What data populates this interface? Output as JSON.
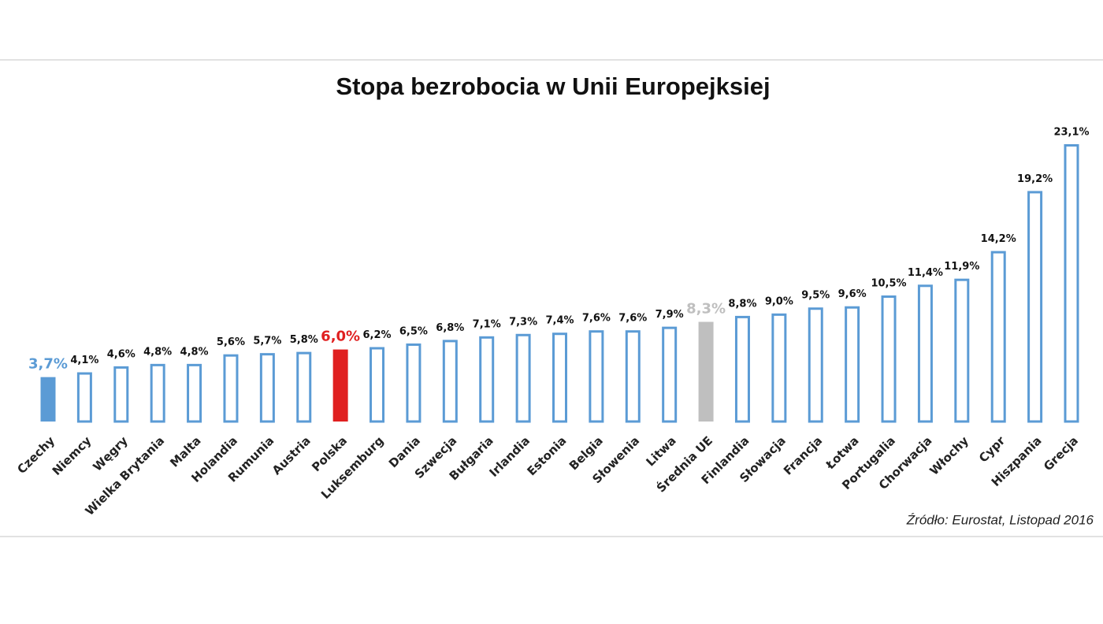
{
  "chart_data": {
    "type": "bar",
    "title": "Stopa bezrobocia w Unii Europejksiej",
    "categories": [
      "Czechy",
      "Niemcy",
      "Węgry",
      "Wielka Brytania",
      "Malta",
      "Holandia",
      "Rumunia",
      "Austria",
      "Polska",
      "Luksemburg",
      "Dania",
      "Szwecja",
      "Bułgaria",
      "Irlandia",
      "Estonia",
      "Belgia",
      "Słowenia",
      "Litwa",
      "Średnia UE",
      "Finlandia",
      "Słowacja",
      "Francja",
      "Łotwa",
      "Portugalia",
      "Chorwacja",
      "Włochy",
      "Cypr",
      "Hiszpania",
      "Grecja"
    ],
    "values": [
      3.7,
      4.1,
      4.6,
      4.8,
      4.8,
      5.6,
      5.7,
      5.8,
      6.0,
      6.2,
      6.5,
      6.8,
      7.1,
      7.3,
      7.4,
      7.6,
      7.6,
      7.9,
      8.3,
      8.8,
      9.0,
      9.5,
      9.6,
      10.5,
      11.4,
      11.9,
      14.2,
      19.2,
      23.1
    ],
    "value_labels": [
      "3,7%",
      "4,1%",
      "4,6%",
      "4,8%",
      "4,8%",
      "5,6%",
      "5,7%",
      "5,8%",
      "6,0%",
      "6,2%",
      "6,5%",
      "6,8%",
      "7,1%",
      "7,3%",
      "7,4%",
      "7,6%",
      "7,6%",
      "7,9%",
      "8,3%",
      "8,8%",
      "9,0%",
      "9,5%",
      "9,6%",
      "10,5%",
      "11,4%",
      "11,9%",
      "14,2%",
      "19,2%",
      "23,1%"
    ],
    "colors": [
      "#5b9bd5",
      "#5b9bd5",
      "#5b9bd5",
      "#5b9bd5",
      "#5b9bd5",
      "#5b9bd5",
      "#5b9bd5",
      "#5b9bd5",
      "#e02020",
      "#5b9bd5",
      "#5b9bd5",
      "#5b9bd5",
      "#5b9bd5",
      "#5b9bd5",
      "#5b9bd5",
      "#5b9bd5",
      "#5b9bd5",
      "#5b9bd5",
      "#bfbfbf",
      "#5b9bd5",
      "#5b9bd5",
      "#5b9bd5",
      "#5b9bd5",
      "#5b9bd5",
      "#5b9bd5",
      "#5b9bd5",
      "#5b9bd5",
      "#5b9bd5",
      "#5b9bd5"
    ],
    "bar_styles": [
      "filled",
      "outline",
      "outline",
      "outline",
      "outline",
      "outline",
      "outline",
      "outline",
      "filled",
      "outline",
      "outline",
      "outline",
      "outline",
      "outline",
      "outline",
      "outline",
      "outline",
      "outline",
      "filled",
      "outline",
      "outline",
      "outline",
      "outline",
      "outline",
      "outline",
      "outline",
      "outline",
      "outline",
      "outline"
    ],
    "source": "Źródło: Eurostat, Listopad 2016"
  }
}
